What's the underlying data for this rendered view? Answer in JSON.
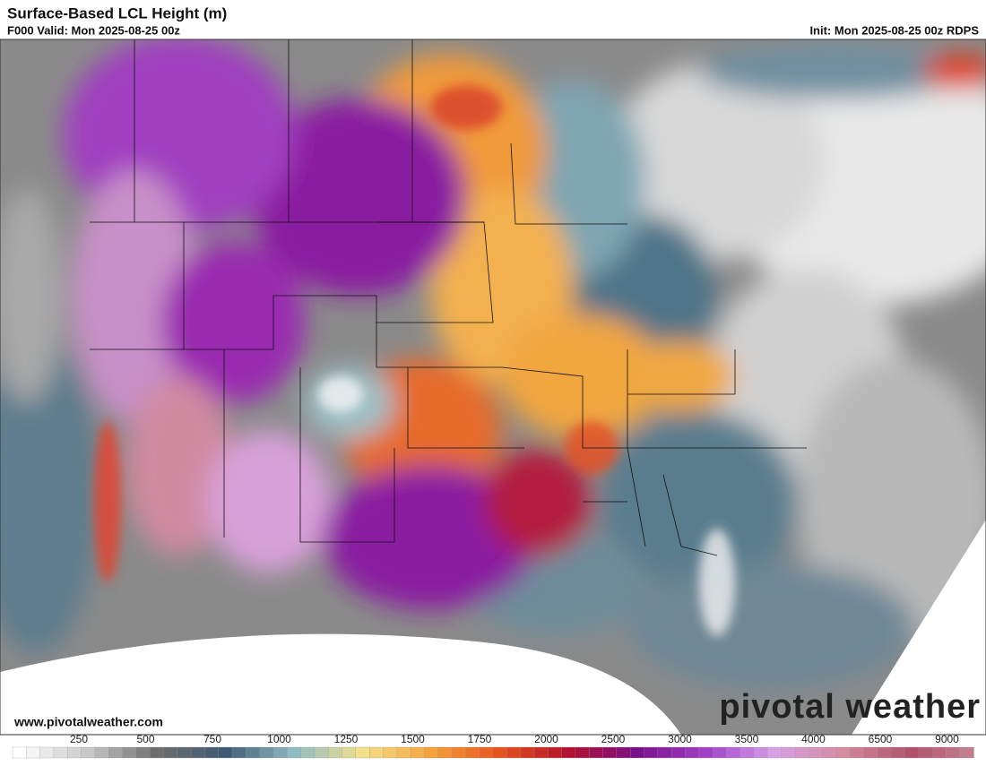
{
  "header": {
    "title": "Surface-Based LCL Height (m)",
    "valid": "F000 Valid: Mon 2025-08-25 00z",
    "init": "Init: Mon 2025-08-25 00z RDPS"
  },
  "footer": {
    "website": "www.pivotalweather.com",
    "logo": "pivotal weather"
  },
  "colorbar": {
    "labels": [
      "250",
      "500",
      "750",
      "1000",
      "1250",
      "1500",
      "1750",
      "2000",
      "2500",
      "3000",
      "3500",
      "4000",
      "6500",
      "9000"
    ],
    "stops": [
      "#ffffff",
      "#c8c8c8",
      "#6e6e6e",
      "#3f5a74",
      "#8fbcc4",
      "#f2e08a",
      "#f5a23a",
      "#e8521c",
      "#b3122e",
      "#7a0f8a",
      "#a040c8",
      "#d8a0e8",
      "#d48aa0",
      "#b0506a",
      "#c88a96"
    ]
  }
}
